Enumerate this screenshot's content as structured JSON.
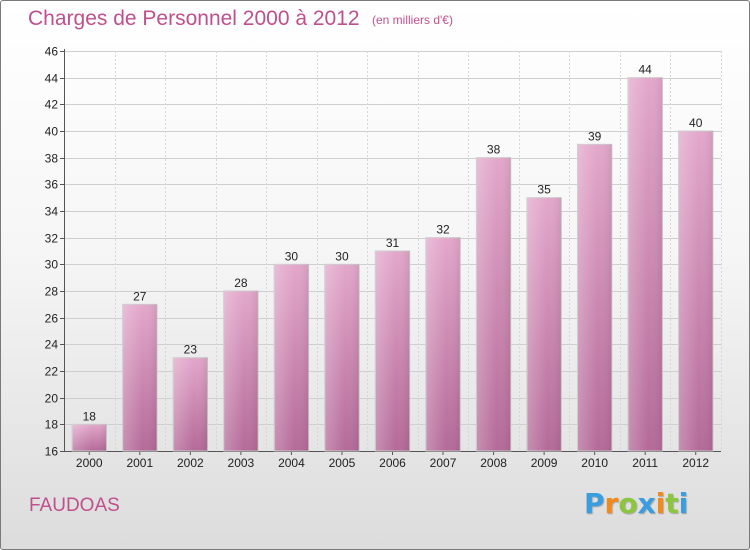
{
  "header": {
    "title": "Charges de Personnel 2000 à 2012",
    "unit": "(en milliers d'€)"
  },
  "footer": {
    "commune": "FAUDOAS",
    "brand_letters": [
      "P",
      "r",
      "o",
      "x",
      "i",
      "t",
      "i"
    ],
    "brand_colors": [
      "#3a9de0",
      "#f08a1a",
      "#8cc63f",
      "#3a9de0",
      "#f08a1a",
      "#8cc63f",
      "#3a9de0"
    ]
  },
  "chart_data": {
    "type": "bar",
    "title": "Charges de Personnel 2000 à 2012",
    "subtitle": "(en milliers d'€)",
    "categories": [
      "2000",
      "2001",
      "2002",
      "2003",
      "2004",
      "2005",
      "2006",
      "2007",
      "2008",
      "2009",
      "2010",
      "2011",
      "2012"
    ],
    "values": [
      18,
      27,
      23,
      28,
      30,
      30,
      31,
      32,
      38,
      35,
      39,
      44,
      40
    ],
    "ylim": [
      16,
      46
    ],
    "yticks": [
      16,
      18,
      20,
      22,
      24,
      26,
      28,
      30,
      32,
      34,
      36,
      38,
      40,
      42,
      44,
      46
    ],
    "grid": true,
    "bar_color": "#d68ab4",
    "data_labels": true
  }
}
